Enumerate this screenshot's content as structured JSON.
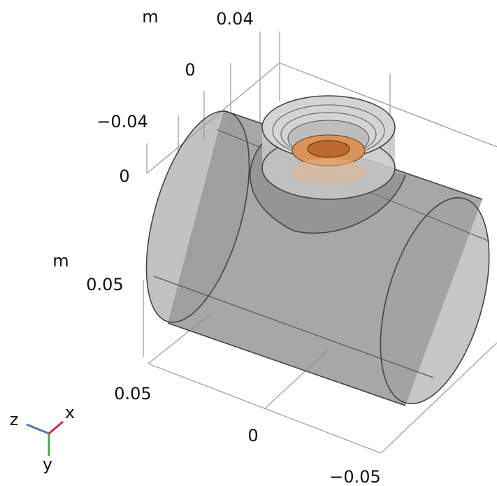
{
  "axes": {
    "upper": {
      "unit": "m",
      "ticks": [
        "0.04",
        "0",
        "−0.04",
        "0"
      ]
    },
    "left": {
      "unit": "m",
      "ticks": [
        "0.05"
      ]
    },
    "bottom": {
      "ticks": [
        "0.05",
        "0",
        "−0.05"
      ]
    }
  },
  "triad": {
    "z": "z",
    "x": "x",
    "y": "y"
  }
}
